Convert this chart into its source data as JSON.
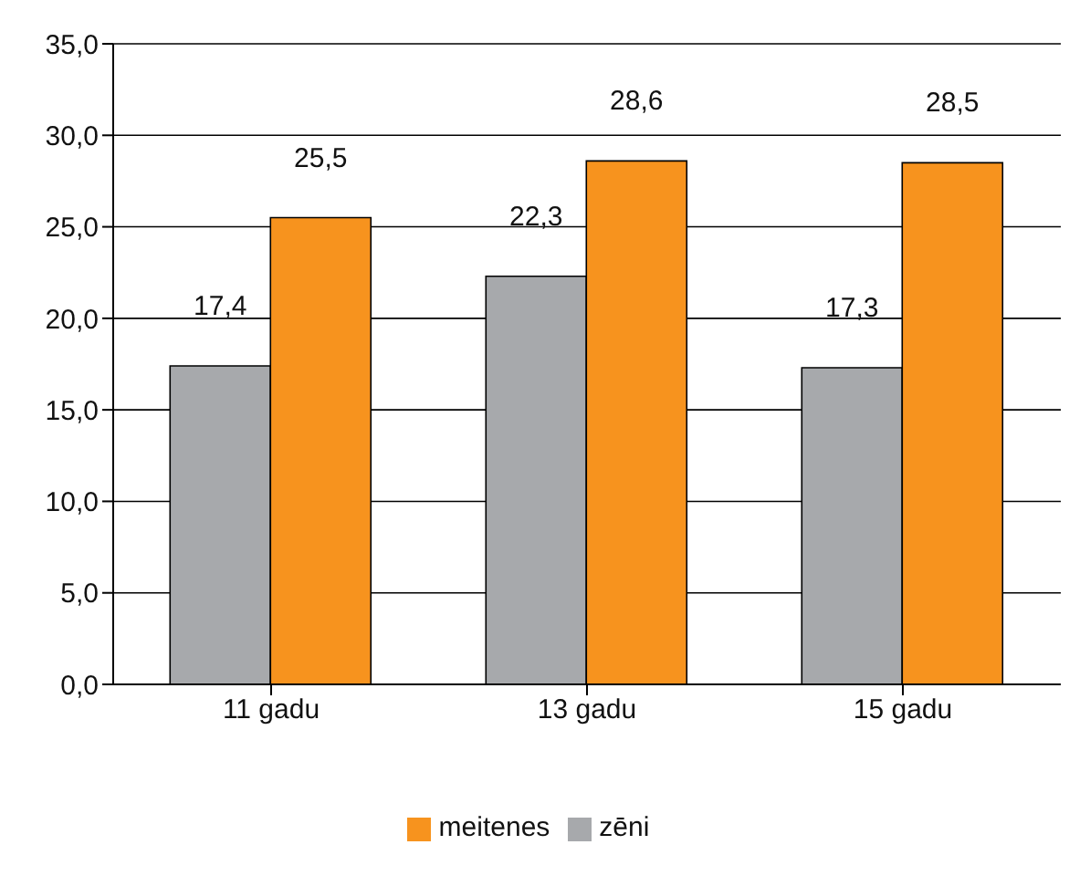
{
  "chart_data": {
    "type": "bar",
    "categories": [
      "11 gadu",
      "13 gadu",
      "15 gadu"
    ],
    "series": [
      {
        "name": "zēni",
        "color": "#a7a9ac",
        "values": [
          17.4,
          22.3,
          17.3
        ],
        "value_labels": [
          "17,4",
          "22,3",
          "17,3"
        ]
      },
      {
        "name": "meitenes",
        "color": "#f7931e",
        "values": [
          25.5,
          28.6,
          28.5
        ],
        "value_labels": [
          "25,5",
          "28,6",
          "28,5"
        ]
      }
    ],
    "ylim": [
      0,
      35
    ],
    "yticks": [
      {
        "value": 0,
        "label": "0,0"
      },
      {
        "value": 5,
        "label": "5,0"
      },
      {
        "value": 10,
        "label": "10,0"
      },
      {
        "value": 15,
        "label": "15,0"
      },
      {
        "value": 20,
        "label": "20,0"
      },
      {
        "value": 25,
        "label": "25,0"
      },
      {
        "value": 30,
        "label": "30,0"
      },
      {
        "value": 35,
        "label": "35,0"
      }
    ],
    "grid": "y",
    "legend": "bottom"
  }
}
